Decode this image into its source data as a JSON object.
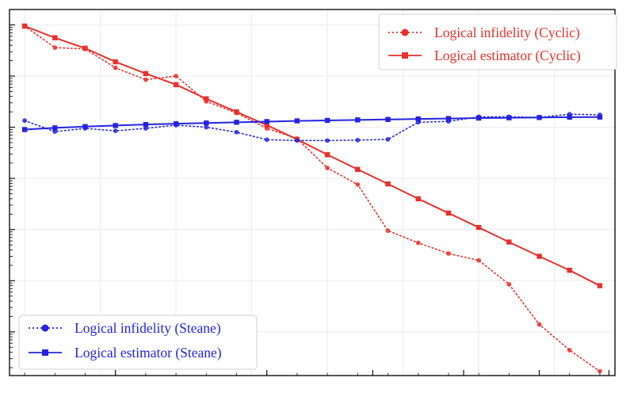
{
  "chart_data": {
    "type": "line",
    "title": "",
    "xlabel": "",
    "ylabel": "",
    "x_scale": "linear",
    "y_scale": "log",
    "xlim": [
      0.5,
      20.5
    ],
    "ylim": [
      1.4e-06,
      20
    ],
    "grid": true,
    "x": [
      1,
      2,
      3,
      4,
      5,
      6,
      7,
      8,
      9,
      10,
      11,
      12,
      13,
      14,
      15,
      16,
      17,
      18,
      19,
      20
    ],
    "series": [
      {
        "name": "Logical infidelity (Cyclic)",
        "color": "#e8302c",
        "style": "dotted-circle",
        "values": [
          9.5,
          3.6,
          3.4,
          1.45,
          0.85,
          1.0,
          0.32,
          0.19,
          0.095,
          0.06,
          0.016,
          0.0076,
          0.00095,
          0.00055,
          0.00034,
          0.00025,
          8.5e-05,
          1.4e-05,
          4.4e-06,
          1.7e-06
        ]
      },
      {
        "name": "Logical estimator (Cyclic)",
        "color": "#e8302c",
        "style": "solid-square",
        "values": [
          9.5,
          5.6,
          3.5,
          1.9,
          1.12,
          0.68,
          0.36,
          0.2,
          0.11,
          0.058,
          0.029,
          0.015,
          0.0078,
          0.004,
          0.0021,
          0.0011,
          0.00057,
          0.0003,
          0.00016,
          8e-05
        ]
      },
      {
        "name": "Logical infidelity (Steane)",
        "color": "#2424e0",
        "style": "dotted-circle",
        "values": [
          0.135,
          0.082,
          0.095,
          0.085,
          0.095,
          0.11,
          0.1,
          0.08,
          0.057,
          0.055,
          0.055,
          0.056,
          0.058,
          0.125,
          0.13,
          0.16,
          0.16,
          0.155,
          0.18,
          0.175
        ]
      },
      {
        "name": "Logical estimator (Steane)",
        "color": "#2424e0",
        "style": "solid-square",
        "values": [
          0.09,
          0.097,
          0.103,
          0.108,
          0.113,
          0.117,
          0.121,
          0.125,
          0.129,
          0.133,
          0.136,
          0.139,
          0.142,
          0.145,
          0.148,
          0.151,
          0.153,
          0.155,
          0.157,
          0.158
        ]
      }
    ],
    "legends": [
      {
        "placement": "top-right",
        "entries": [
          "Logical infidelity (Cyclic)",
          "Logical estimator (Cyclic)"
        ]
      },
      {
        "placement": "bottom-left",
        "entries": [
          "Logical infidelity (Steane)",
          "Logical estimator (Steane)"
        ]
      }
    ]
  }
}
